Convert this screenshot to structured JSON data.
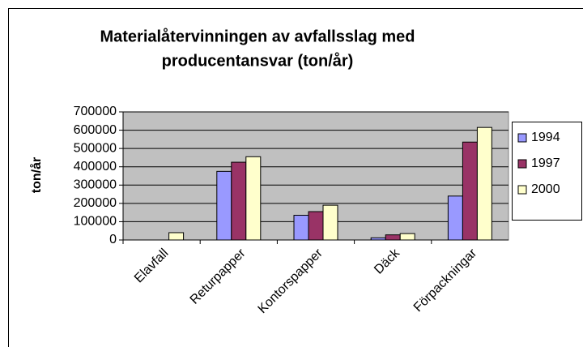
{
  "chart_data": {
    "type": "bar",
    "title": [
      "Materialåtervinningen av avfallsslag med",
      "producentansvar (ton/år)"
    ],
    "y_label": "ton/år",
    "categories": [
      "Elavfall",
      "Returpapper",
      "Kontorspapper",
      "Däck",
      "Förpackningar"
    ],
    "series": [
      {
        "name": "1994",
        "color": "#9999ff",
        "values": [
          0,
          375000,
          135000,
          12000,
          240000
        ]
      },
      {
        "name": "1997",
        "color": "#993366",
        "values": [
          0,
          425000,
          155000,
          28000,
          535000
        ]
      },
      {
        "name": "2000",
        "color": "#ffffcc",
        "values": [
          40000,
          455000,
          190000,
          35000,
          615000
        ]
      }
    ],
    "ylim": [
      0,
      700000
    ],
    "yticks": [
      0,
      100000,
      200000,
      300000,
      400000,
      500000,
      600000,
      700000
    ],
    "grid": true,
    "legend": "right"
  }
}
